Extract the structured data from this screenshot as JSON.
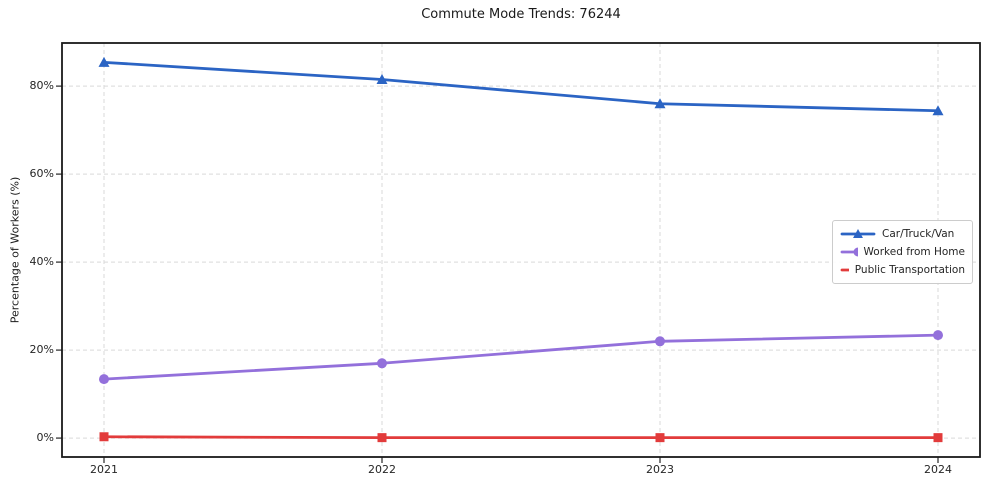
{
  "chart_data": {
    "type": "line",
    "title": "Commute Mode Trends: 76244",
    "xlabel": "",
    "ylabel": "Percentage of Workers (%)",
    "categories": [
      "2021",
      "2022",
      "2023",
      "2024"
    ],
    "series": [
      {
        "name": "Car/Truck/Van",
        "color": "#2b64c4",
        "marker": "triangle",
        "values": [
          85.4,
          81.5,
          76.0,
          74.4
        ]
      },
      {
        "name": "Worked from Home",
        "color": "#9370db",
        "marker": "circle",
        "values": [
          13.4,
          17.0,
          22.0,
          23.4
        ]
      },
      {
        "name": "Public Transportation",
        "color": "#e23b3b",
        "marker": "square",
        "values": [
          0.3,
          0.1,
          0.1,
          0.1
        ]
      }
    ],
    "yticks": [
      0,
      20,
      40,
      60,
      80
    ],
    "ytick_labels": [
      "0%",
      "20%",
      "40%",
      "60%",
      "80%"
    ],
    "ylim": [
      -4.3,
      89.8
    ],
    "grid": true,
    "legend_position": "right-center"
  }
}
